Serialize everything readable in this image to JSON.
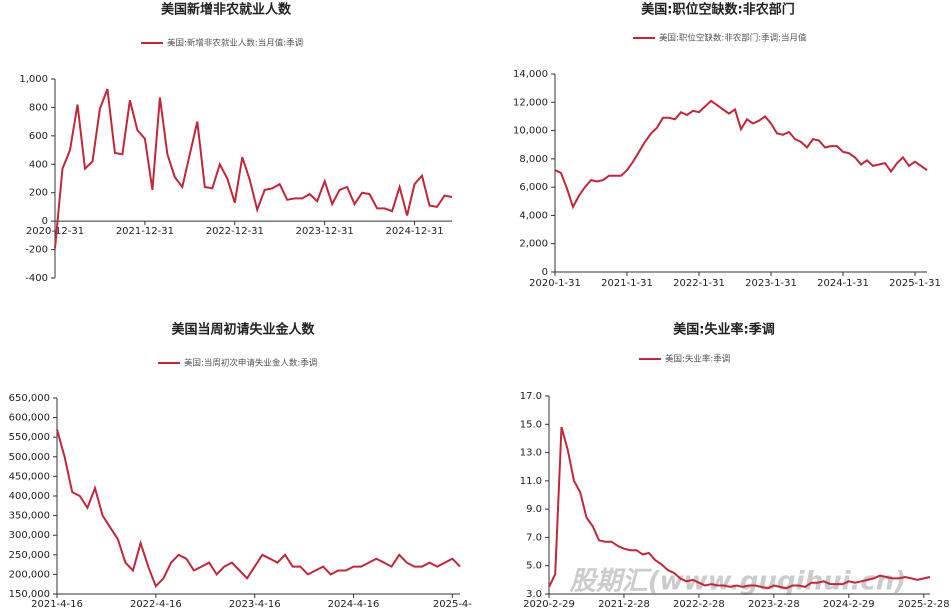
{
  "watermark": "股期汇(www.guqihui.cn)",
  "chart_data": [
    {
      "type": "line",
      "title": "美国新增非农就业人数",
      "categories": [
        "2020-12-31",
        null,
        null,
        null,
        null,
        null,
        null,
        null,
        null,
        null,
        null,
        null,
        "2021-12-31",
        null,
        null,
        null,
        null,
        null,
        null,
        null,
        null,
        null,
        null,
        null,
        "2022-12-31",
        null,
        null,
        null,
        null,
        null,
        null,
        null,
        null,
        null,
        null,
        null,
        "2023-12-31",
        null,
        null,
        null,
        null,
        null,
        null,
        null,
        null,
        null,
        null,
        null,
        "2024-12-31",
        null,
        null,
        null,
        null,
        null
      ],
      "series": [
        {
          "name": "美国:新增非农就业人数:当月值:季调",
          "color": "#c0283a",
          "values": [
            -190,
            370,
            500,
            820,
            370,
            420,
            790,
            930,
            480,
            470,
            850,
            640,
            580,
            220,
            870,
            470,
            310,
            240,
            470,
            700,
            240,
            230,
            400,
            300,
            130,
            450,
            290,
            80,
            220,
            230,
            260,
            150,
            160,
            160,
            190,
            140,
            280,
            120,
            220,
            240,
            120,
            200,
            190,
            90,
            90,
            70,
            240,
            40,
            260,
            320,
            110,
            100,
            180,
            170
          ]
        }
      ],
      "ylim": [
        -400,
        1000
      ],
      "yticks": [
        -400,
        -200,
        0,
        200,
        400,
        600,
        800,
        {
          "value": 1000,
          "label": "1,000"
        }
      ]
    },
    {
      "type": "line",
      "title": "美国:职位空缺数:非农部门",
      "categories": [
        "2020-1-31",
        null,
        null,
        null,
        null,
        null,
        null,
        null,
        null,
        null,
        null,
        null,
        "2021-1-31",
        null,
        null,
        null,
        null,
        null,
        null,
        null,
        null,
        null,
        null,
        null,
        "2022-1-31",
        null,
        null,
        null,
        null,
        null,
        null,
        null,
        null,
        null,
        null,
        null,
        "2023-1-31",
        null,
        null,
        null,
        null,
        null,
        null,
        null,
        null,
        null,
        null,
        null,
        "2024-1-31",
        null,
        null,
        null,
        null,
        null,
        null,
        null,
        null,
        null,
        null,
        null,
        "2025-1-31",
        null,
        null
      ],
      "series": [
        {
          "name": "美国:职位空缺数:非农部门:季调:当月值",
          "color": "#c0283a",
          "values": [
            7200,
            7000,
            5900,
            4600,
            5400,
            6000,
            6500,
            6400,
            6500,
            6800,
            6800,
            6800,
            7200,
            7800,
            8500,
            9200,
            9800,
            10200,
            10900,
            10900,
            10800,
            11300,
            11100,
            11400,
            11300,
            11700,
            12100,
            11800,
            11500,
            11200,
            11500,
            10100,
            10800,
            10500,
            10700,
            11000,
            10500,
            9800,
            9700,
            9900,
            9400,
            9200,
            8800,
            9400,
            9300,
            8800,
            8900,
            8900,
            8500,
            8400,
            8100,
            7600,
            7900,
            7500,
            7600,
            7700,
            7100,
            7700,
            8100,
            7500,
            7800,
            7500,
            7200
          ]
        }
      ],
      "ylim": [
        0,
        14000
      ],
      "yticks": [
        0,
        {
          "value": 2000,
          "label": "2,000"
        },
        {
          "value": 4000,
          "label": "4,000"
        },
        {
          "value": 6000,
          "label": "6,000"
        },
        {
          "value": 8000,
          "label": "8,000"
        },
        {
          "value": 10000,
          "label": "10,000"
        },
        {
          "value": 12000,
          "label": "12,000"
        },
        {
          "value": 14000,
          "label": "14,000"
        }
      ]
    },
    {
      "type": "line",
      "title": "美国当周初请失业金人数",
      "categories": [
        "2021-4-16",
        null,
        null,
        null,
        null,
        null,
        null,
        null,
        null,
        null,
        null,
        null,
        null,
        "2022-4-16",
        null,
        null,
        null,
        null,
        null,
        null,
        null,
        null,
        null,
        null,
        null,
        null,
        "2023-4-16",
        null,
        null,
        null,
        null,
        null,
        null,
        null,
        null,
        null,
        null,
        null,
        null,
        "2024-4-16",
        null,
        null,
        null,
        null,
        null,
        null,
        null,
        null,
        null,
        null,
        null,
        null,
        "2025-4-",
        null
      ],
      "series": [
        {
          "name": "美国:当周初次申请失业金人数:季调",
          "color": "#c0283a",
          "values": [
            570000,
            500000,
            410000,
            400000,
            370000,
            420000,
            350000,
            320000,
            290000,
            230000,
            210000,
            280000,
            220000,
            170000,
            190000,
            230000,
            250000,
            240000,
            210000,
            220000,
            230000,
            200000,
            220000,
            230000,
            210000,
            190000,
            220000,
            250000,
            240000,
            230000,
            250000,
            220000,
            220000,
            200000,
            210000,
            220000,
            200000,
            210000,
            210000,
            220000,
            220000,
            230000,
            240000,
            230000,
            220000,
            250000,
            230000,
            220000,
            220000,
            230000,
            220000,
            230000,
            240000,
            220000
          ]
        }
      ],
      "ylim": [
        150000,
        650000
      ],
      "yticks": [
        {
          "value": 150000,
          "label": "150,000"
        },
        {
          "value": 200000,
          "label": "200,000"
        },
        {
          "value": 250000,
          "label": "250,000"
        },
        {
          "value": 300000,
          "label": "300,000"
        },
        {
          "value": 350000,
          "label": "350,000"
        },
        {
          "value": 400000,
          "label": "400,000"
        },
        {
          "value": 450000,
          "label": "450,000"
        },
        {
          "value": 500000,
          "label": "500,000"
        },
        {
          "value": 550000,
          "label": "550,000"
        },
        {
          "value": 600000,
          "label": "600,000"
        },
        {
          "value": 650000,
          "label": "650,000"
        }
      ]
    },
    {
      "type": "line",
      "title": "美国:失业率:季调",
      "categories": [
        "2020-2-29",
        null,
        null,
        null,
        null,
        null,
        null,
        null,
        null,
        null,
        null,
        null,
        "2021-2-28",
        null,
        null,
        null,
        null,
        null,
        null,
        null,
        null,
        null,
        null,
        null,
        "2022-2-28",
        null,
        null,
        null,
        null,
        null,
        null,
        null,
        null,
        null,
        null,
        null,
        "2023-2-28",
        null,
        null,
        null,
        null,
        null,
        null,
        null,
        null,
        null,
        null,
        null,
        "2024-2-29",
        null,
        null,
        null,
        null,
        null,
        null,
        null,
        null,
        null,
        null,
        null,
        "2025-2-28",
        null
      ],
      "series": [
        {
          "name": "美国:失业率:季调",
          "color": "#c0283a",
          "values": [
            3.5,
            4.4,
            14.8,
            13.2,
            11.0,
            10.2,
            8.4,
            7.8,
            6.8,
            6.7,
            6.7,
            6.4,
            6.2,
            6.1,
            6.1,
            5.8,
            5.9,
            5.4,
            5.1,
            4.7,
            4.5,
            4.1,
            3.9,
            4.0,
            3.8,
            3.6,
            3.7,
            3.6,
            3.6,
            3.5,
            3.6,
            3.5,
            3.6,
            3.6,
            3.5,
            3.4,
            3.6,
            3.5,
            3.4,
            3.6,
            3.6,
            3.5,
            3.8,
            3.8,
            3.9,
            3.7,
            3.7,
            3.7,
            3.9,
            3.8,
            3.9,
            4.0,
            4.1,
            4.3,
            4.2,
            4.1,
            4.1,
            4.2,
            4.1,
            4.0,
            4.1,
            4.2
          ]
        }
      ],
      "ylim": [
        3,
        17
      ],
      "yticks": [
        {
          "value": 3,
          "label": "3.0"
        },
        {
          "value": 5,
          "label": "5.0"
        },
        {
          "value": 7,
          "label": "7.0"
        },
        {
          "value": 9,
          "label": "9.0"
        },
        {
          "value": 11,
          "label": "11.0"
        },
        {
          "value": 13,
          "label": "13.0"
        },
        {
          "value": 15,
          "label": "15.0"
        },
        {
          "value": 17,
          "label": "17.0"
        }
      ]
    }
  ]
}
